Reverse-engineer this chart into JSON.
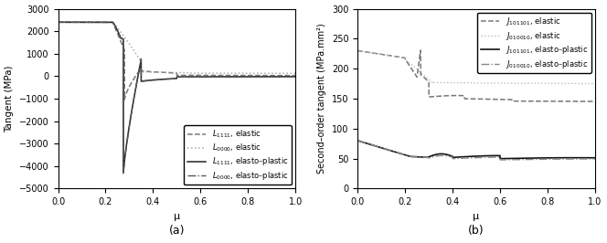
{
  "fig_width": 6.64,
  "fig_height": 2.66,
  "dpi": 100,
  "subplot_a": {
    "xlabel": "μ",
    "ylabel": "Tangent (MPa)",
    "xlim": [
      0,
      1
    ],
    "ylim": [
      -5000,
      3000
    ],
    "yticks": [
      -5000,
      -4000,
      -3000,
      -2000,
      -1000,
      0,
      1000,
      2000,
      3000
    ],
    "xticks": [
      0,
      0.2,
      0.4,
      0.6,
      0.8,
      1.0
    ],
    "label_below": "(a)"
  },
  "subplot_b": {
    "xlabel": "μ",
    "ylabel": "Second–order tangent (MPa.mm²)",
    "xlim": [
      0,
      1
    ],
    "ylim": [
      0,
      300
    ],
    "yticks": [
      0,
      50,
      100,
      150,
      200,
      250,
      300
    ],
    "xticks": [
      0,
      0.2,
      0.4,
      0.6,
      0.8,
      1.0
    ],
    "label_below": "(b)"
  },
  "colors": {
    "L1111_el": "#777777",
    "L0000_el": "#aaaaaa",
    "L1111_ep": "#222222",
    "L0000_ep": "#555555",
    "J101101_el": "#777777",
    "J010010_el": "#bbbbbb",
    "J101101_ep": "#111111",
    "J010010_ep": "#888888"
  }
}
